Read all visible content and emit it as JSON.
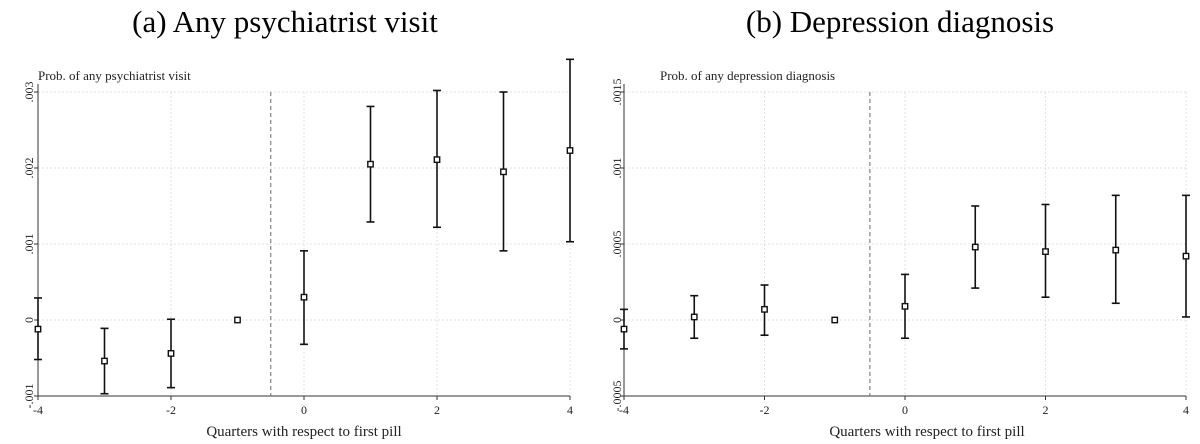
{
  "panels": {
    "a": {
      "title": "(a) Any psychiatrist visit"
    },
    "b": {
      "title": "(b) Depression diagnosis"
    }
  },
  "chart_data": [
    {
      "type": "scatter",
      "title": "(a) Any psychiatrist visit",
      "ylabel": "Prob. of any psychiatrist visit",
      "xlabel": "Quarters with respect to first pill",
      "x": [
        -4,
        -3,
        -2,
        -1,
        0,
        1,
        2,
        3,
        4
      ],
      "values": [
        -0.00012,
        -0.00054,
        -0.00044,
        0.0,
        0.0003,
        0.00205,
        0.00211,
        0.00195,
        0.00223
      ],
      "ci_low": [
        -0.00052,
        -0.00097,
        -0.00089,
        0.0,
        -0.00032,
        0.00129,
        0.00122,
        0.00091,
        0.00103
      ],
      "ci_high": [
        0.00029,
        -0.00011,
        1e-05,
        0.0,
        0.00091,
        0.00281,
        0.00302,
        0.003,
        0.00343
      ],
      "xlim": [
        -4,
        4
      ],
      "ylim": [
        -0.001,
        0.003
      ],
      "xticks": [
        "-4",
        "-2",
        "0",
        "2",
        "4"
      ],
      "yticks": [
        ".003",
        ".002",
        ".001",
        "0",
        "-.001"
      ],
      "yticks_values": [
        0.003,
        0.002,
        0.001,
        0,
        -0.001
      ],
      "reference_line_x": -0.5,
      "grid": true,
      "marker": "hollow-square"
    },
    {
      "type": "scatter",
      "title": "(b) Depression diagnosis",
      "ylabel": "Prob. of any depression diagnosis",
      "xlabel": "Quarters with respect to first pill",
      "x": [
        -4,
        -3,
        -2,
        -1,
        0,
        1,
        2,
        3,
        4
      ],
      "values": [
        -6e-05,
        2e-05,
        7e-05,
        0.0,
        9e-05,
        0.00048,
        0.00045,
        0.00046,
        0.00042
      ],
      "ci_low": [
        -0.00019,
        -0.00012,
        -0.0001,
        0.0,
        -0.00012,
        0.00021,
        0.00015,
        0.00011,
        2e-05
      ],
      "ci_high": [
        7e-05,
        0.00016,
        0.00023,
        0.0,
        0.0003,
        0.00075,
        0.00076,
        0.00082,
        0.00082
      ],
      "xlim": [
        -4,
        4
      ],
      "ylim": [
        -0.0005,
        0.0015
      ],
      "xticks": [
        "-4",
        "-2",
        "0",
        "2",
        "4"
      ],
      "yticks": [
        ".0015",
        ".001",
        ".0005",
        "0",
        "-.0005"
      ],
      "yticks_values": [
        0.0015,
        0.001,
        0.0005,
        0,
        -0.0005
      ],
      "reference_line_x": -0.5,
      "grid": true,
      "marker": "hollow-square"
    }
  ]
}
